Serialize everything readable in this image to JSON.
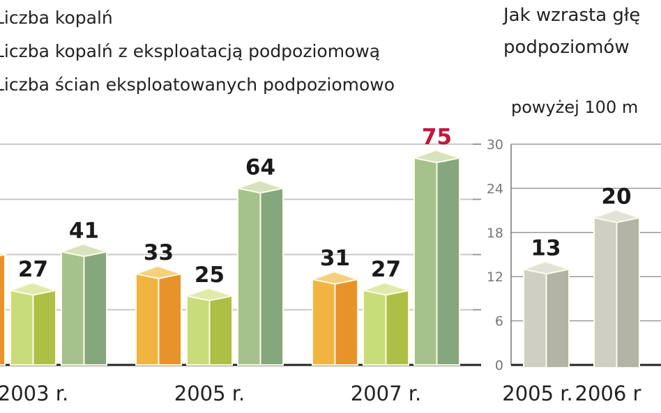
{
  "chart_data": [
    {
      "type": "bar",
      "legend": [
        "Liczba kopalń",
        "Liczba kopalń z eksploatacją podpoziomową",
        "Liczba ścian eksploatowanych podpoziomowo"
      ],
      "legend_placement": "top-left",
      "categories": [
        "2003 r.",
        "2005 r.",
        "2007 r."
      ],
      "series": [
        {
          "name": "Liczba kopalń",
          "values": [
            40,
            33,
            31
          ],
          "color": "#eea73a"
        },
        {
          "name": "Liczba kopalń z eksploatacją podpoziomową",
          "values": [
            27,
            25,
            27
          ],
          "color": "#bcd05e"
        },
        {
          "name": "Liczba ścian eksploatowanych podpoziomowo",
          "values": [
            41,
            64,
            75
          ],
          "color": "#97b585"
        }
      ],
      "data_labels": [
        [
          null,
          "33",
          "31"
        ],
        [
          "27",
          "25",
          "27"
        ],
        [
          "41",
          "64",
          "75"
        ]
      ],
      "highlight_label_color": "#c0163f",
      "ylim": [
        0,
        80
      ],
      "grid": true
    },
    {
      "type": "bar",
      "title_lines": [
        "Jak wzrasta głę",
        "podpoziomów"
      ],
      "subtitle": "powyżej 100 m",
      "categories": [
        "2005 r.",
        "2006 r"
      ],
      "values": [
        13,
        20
      ],
      "data_labels": [
        "13",
        "20"
      ],
      "yticks": [
        "0",
        "6",
        "12",
        "18",
        "24",
        "30"
      ],
      "ylim": [
        0,
        30
      ],
      "grid": true,
      "color": "#c3c3b6"
    }
  ]
}
